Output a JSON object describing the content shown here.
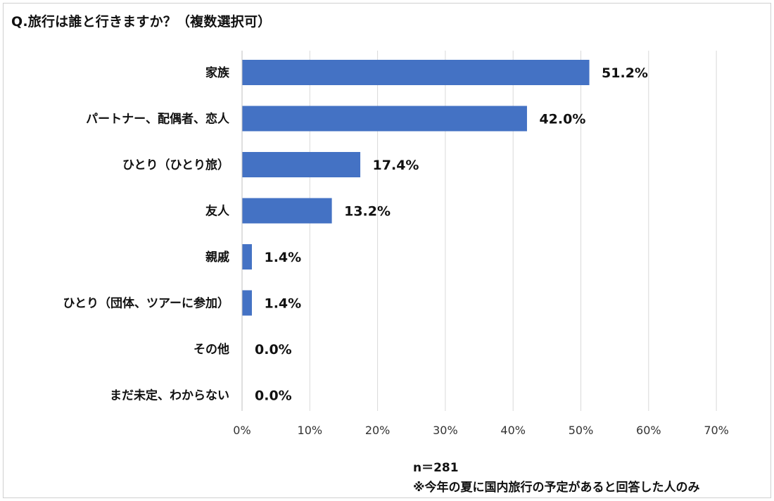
{
  "chart_data": {
    "type": "bar",
    "orientation": "horizontal",
    "title": "Q.旅行は誰と行きますか？（複数選択可）",
    "categories": [
      "家族",
      "パートナー、配偶者、恋人",
      "ひとり（ひとり旅）",
      "友人",
      "親戚",
      "ひとり（団体、ツアーに参加）",
      "その他",
      "まだ未定、わからない"
    ],
    "values": [
      51.2,
      42.0,
      17.4,
      13.2,
      1.4,
      1.4,
      0.0,
      0.0
    ],
    "value_labels": [
      "51.2%",
      "42.0%",
      "17.4%",
      "13.2%",
      "1.4%",
      "1.4%",
      "0.0%",
      "0.0%"
    ],
    "xlim": [
      0,
      70
    ],
    "xticks": [
      "0%",
      "10%",
      "20%",
      "30%",
      "40%",
      "50%",
      "60%",
      "70%"
    ],
    "grid": true,
    "bar_color": "#4472C4"
  },
  "notes": {
    "sample": "n＝281",
    "footnote": "※今年の夏に国内旅行の予定があると回答した人のみ"
  }
}
